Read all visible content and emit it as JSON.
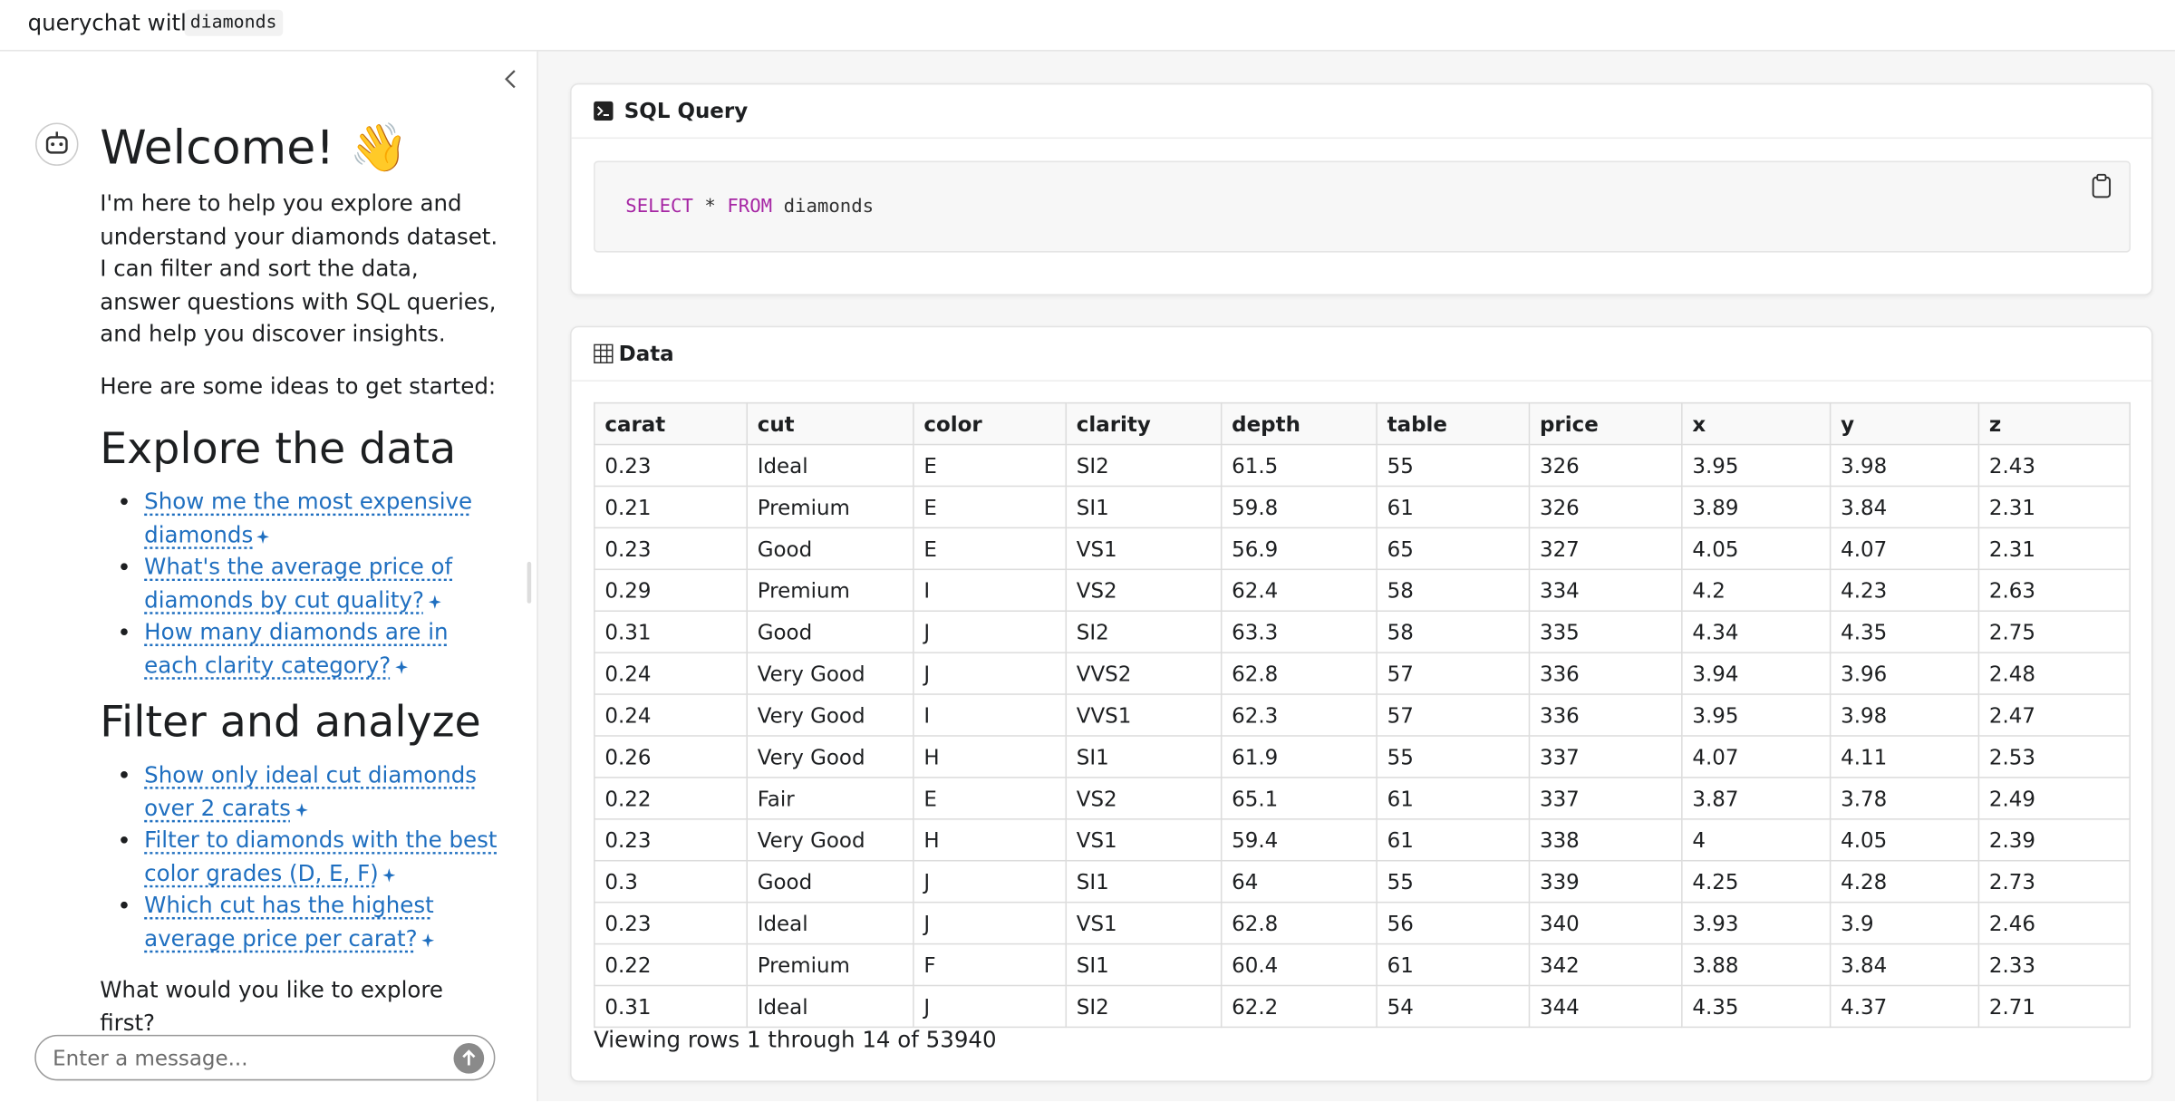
{
  "header": {
    "title": "querychat with",
    "dataset": "diamonds"
  },
  "sidebar": {
    "welcome": "Welcome! 👋",
    "intro": "I'm here to help you explore and understand your diamonds dataset. I can filter and sort the data, answer questions with SQL queries, and help you discover insights.",
    "ideas_prompt": "Here are some ideas to get started:",
    "sections": [
      {
        "heading": "Explore the data",
        "suggestions": [
          "Show me the most expensive diamonds",
          "What's the average price of diamonds by cut quality?",
          "How many diamonds are in each clarity category?"
        ]
      },
      {
        "heading": "Filter and analyze",
        "suggestions": [
          "Show only ideal cut diamonds over 2 carats",
          "Filter to diamonds with the best color grades (D, E, F)",
          "Which cut has the highest average price per carat?"
        ]
      }
    ],
    "closing": "What would you like to explore first?",
    "input_placeholder": "Enter a message..."
  },
  "sql": {
    "title": "SQL Query",
    "query": "SELECT * FROM diamonds"
  },
  "table": {
    "title": "Data",
    "columns": [
      "carat",
      "cut",
      "color",
      "clarity",
      "depth",
      "table",
      "price",
      "x",
      "y",
      "z"
    ],
    "rows": [
      [
        0.23,
        "Ideal",
        "E",
        "SI2",
        61.5,
        55,
        326,
        3.95,
        3.98,
        2.43
      ],
      [
        0.21,
        "Premium",
        "E",
        "SI1",
        59.8,
        61,
        326,
        3.89,
        3.84,
        2.31
      ],
      [
        0.23,
        "Good",
        "E",
        "VS1",
        56.9,
        65,
        327,
        4.05,
        4.07,
        2.31
      ],
      [
        0.29,
        "Premium",
        "I",
        "VS2",
        62.4,
        58,
        334,
        4.2,
        4.23,
        2.63
      ],
      [
        0.31,
        "Good",
        "J",
        "SI2",
        63.3,
        58,
        335,
        4.34,
        4.35,
        2.75
      ],
      [
        0.24,
        "Very Good",
        "J",
        "VVS2",
        62.8,
        57,
        336,
        3.94,
        3.96,
        2.48
      ],
      [
        0.24,
        "Very Good",
        "I",
        "VVS1",
        62.3,
        57,
        336,
        3.95,
        3.98,
        2.47
      ],
      [
        0.26,
        "Very Good",
        "H",
        "SI1",
        61.9,
        55,
        337,
        4.07,
        4.11,
        2.53
      ],
      [
        0.22,
        "Fair",
        "E",
        "VS2",
        65.1,
        61,
        337,
        3.87,
        3.78,
        2.49
      ],
      [
        0.23,
        "Very Good",
        "H",
        "VS1",
        59.4,
        61,
        338,
        4,
        4.05,
        2.39
      ],
      [
        0.3,
        "Good",
        "J",
        "SI1",
        64,
        55,
        339,
        4.25,
        4.28,
        2.73
      ],
      [
        0.23,
        "Ideal",
        "J",
        "VS1",
        62.8,
        56,
        340,
        3.93,
        3.9,
        2.46
      ],
      [
        0.22,
        "Premium",
        "F",
        "SI1",
        60.4,
        61,
        342,
        3.88,
        3.84,
        2.33
      ],
      [
        0.31,
        "Ideal",
        "J",
        "SI2",
        62.2,
        54,
        344,
        4.35,
        4.37,
        2.71
      ]
    ],
    "footer": "Viewing rows 1 through 14 of 53940"
  }
}
